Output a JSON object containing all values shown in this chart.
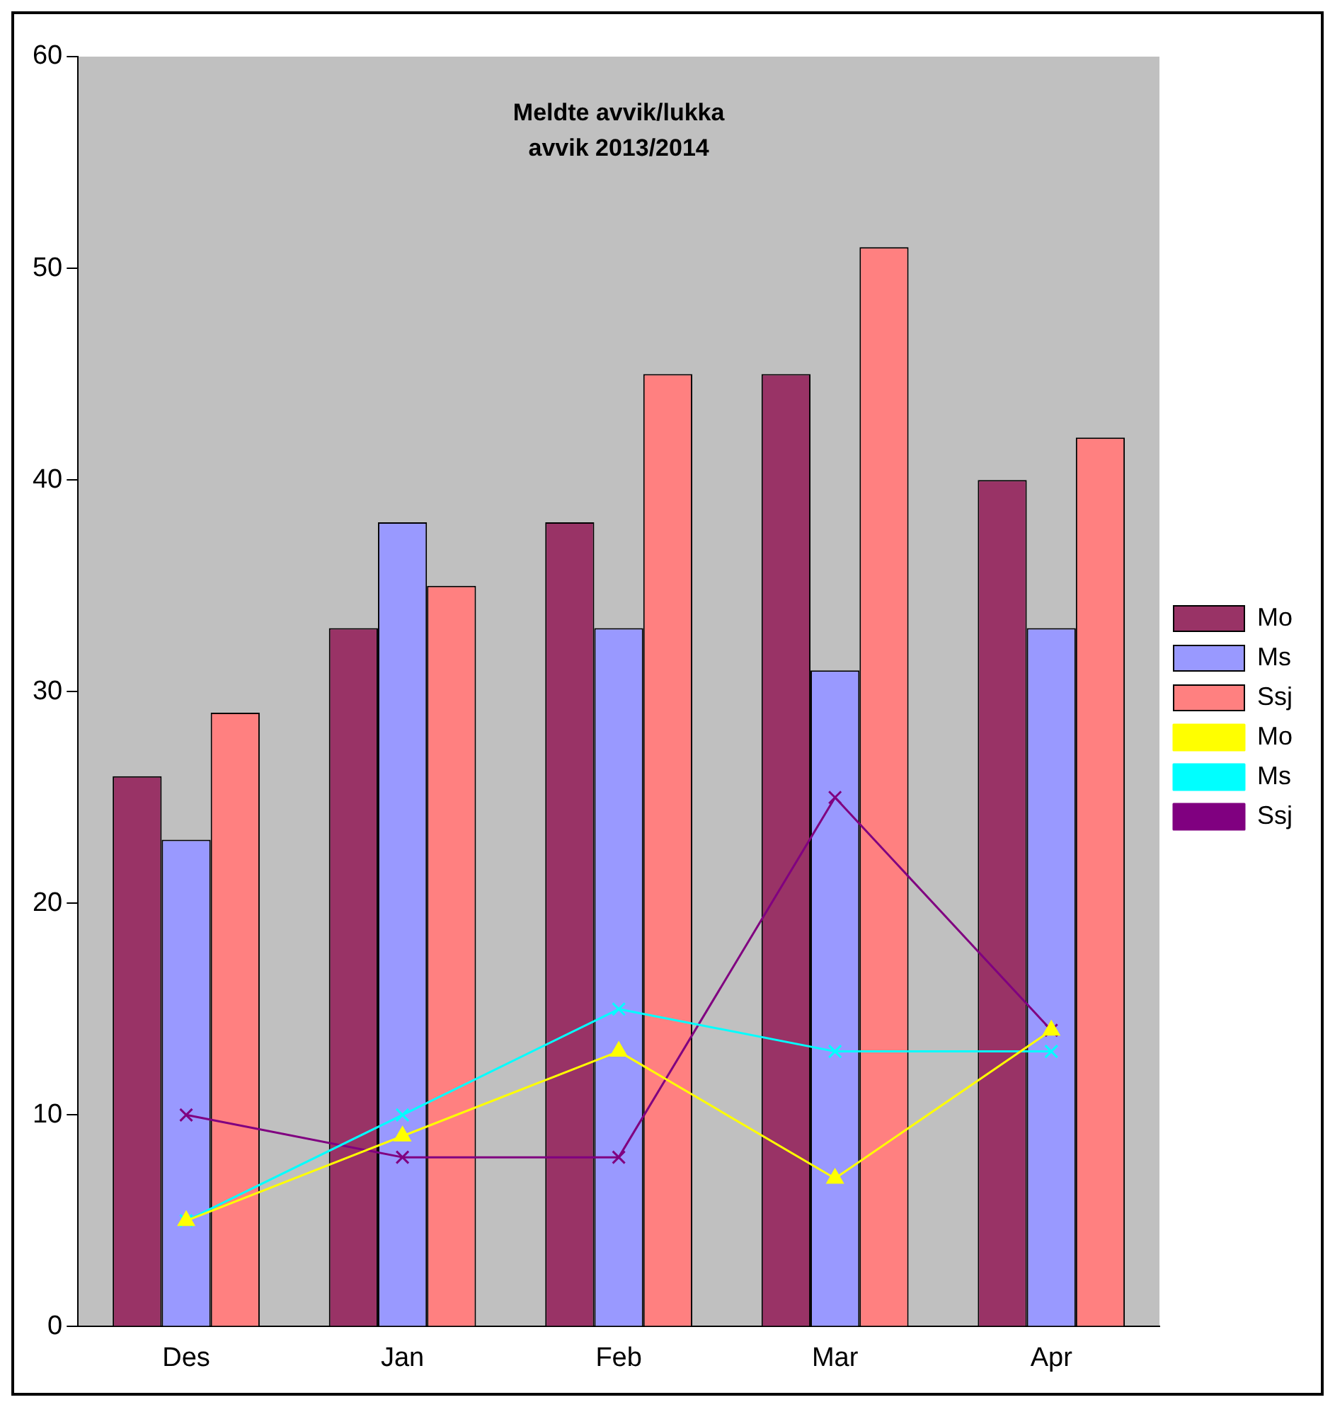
{
  "chart_data": {
    "type": "bar",
    "title": "Meldte avvik/lukka\navvik 2013/2014",
    "categories": [
      "Des",
      "Jan",
      "Feb",
      "Mar",
      "Apr"
    ],
    "ylim": [
      0,
      60
    ],
    "yticks": [
      0,
      10,
      20,
      30,
      40,
      50,
      60
    ],
    "grid": false,
    "legend": "right",
    "series": [
      {
        "name": "Mo",
        "color": "#993366",
        "values": [
          26,
          33,
          38,
          45,
          40
        ]
      },
      {
        "name": "Ms",
        "color": "#9999ff",
        "values": [
          23,
          38,
          33,
          31,
          33
        ]
      },
      {
        "name": "Ssj",
        "color": "#ff8080",
        "values": [
          29,
          35,
          45,
          51,
          42
        ]
      },
      {
        "name": "Mo",
        "type": "line",
        "color": "#ffff00",
        "marker": "triangle",
        "values": [
          5,
          9,
          13,
          7,
          14
        ]
      },
      {
        "name": "Ms",
        "type": "line",
        "color": "#00ffff",
        "marker": "cross",
        "values": [
          5,
          10,
          15,
          13,
          13
        ]
      },
      {
        "name": "Ssj",
        "type": "line",
        "color": "#800080",
        "marker": "cross",
        "values": [
          10,
          8,
          8,
          25,
          14
        ]
      }
    ]
  }
}
